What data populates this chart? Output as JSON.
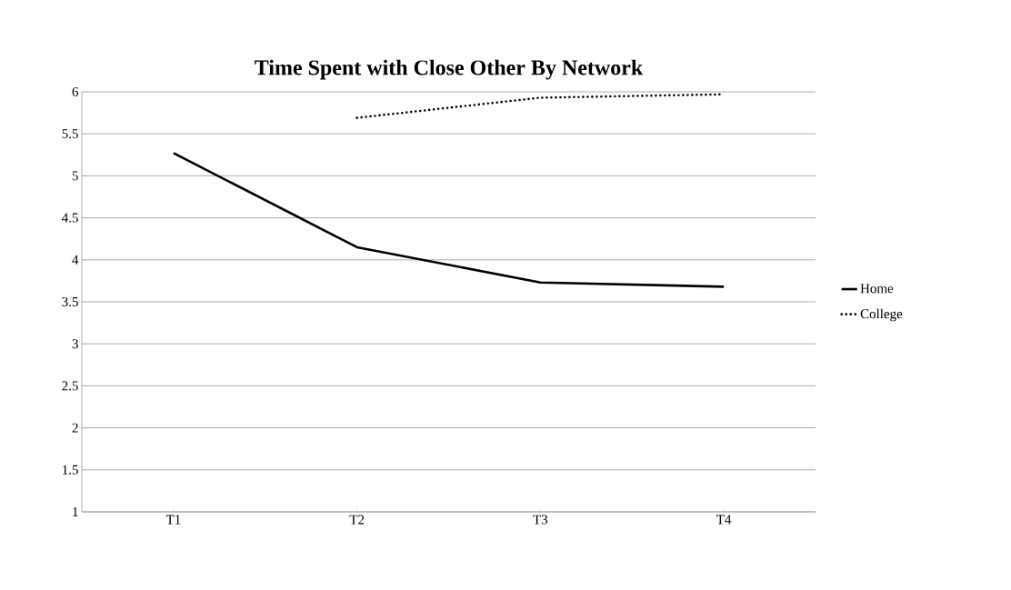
{
  "chart_data": {
    "type": "line",
    "title": "**Time Spent with Close Other By Network**",
    "categories": [
      "T1",
      "T2",
      "T3",
      "T4"
    ],
    "series": [
      {
        "name": "Home",
        "color": "#000000",
        "line_style": "solid",
        "values": [
          5.27,
          4.15,
          3.73,
          3.68
        ]
      },
      {
        "name": "College",
        "color": "#000000",
        "line_style": "dotted",
        "values": [
          null,
          5.69,
          5.93,
          5.97
        ]
      }
    ],
    "ylim": [
      1,
      6
    ],
    "yticks": [
      1,
      1.5,
      2,
      2.5,
      3,
      3.5,
      4,
      4.5,
      5,
      5.5,
      6
    ],
    "grid": "y",
    "legend": "right",
    "marker": "none"
  }
}
